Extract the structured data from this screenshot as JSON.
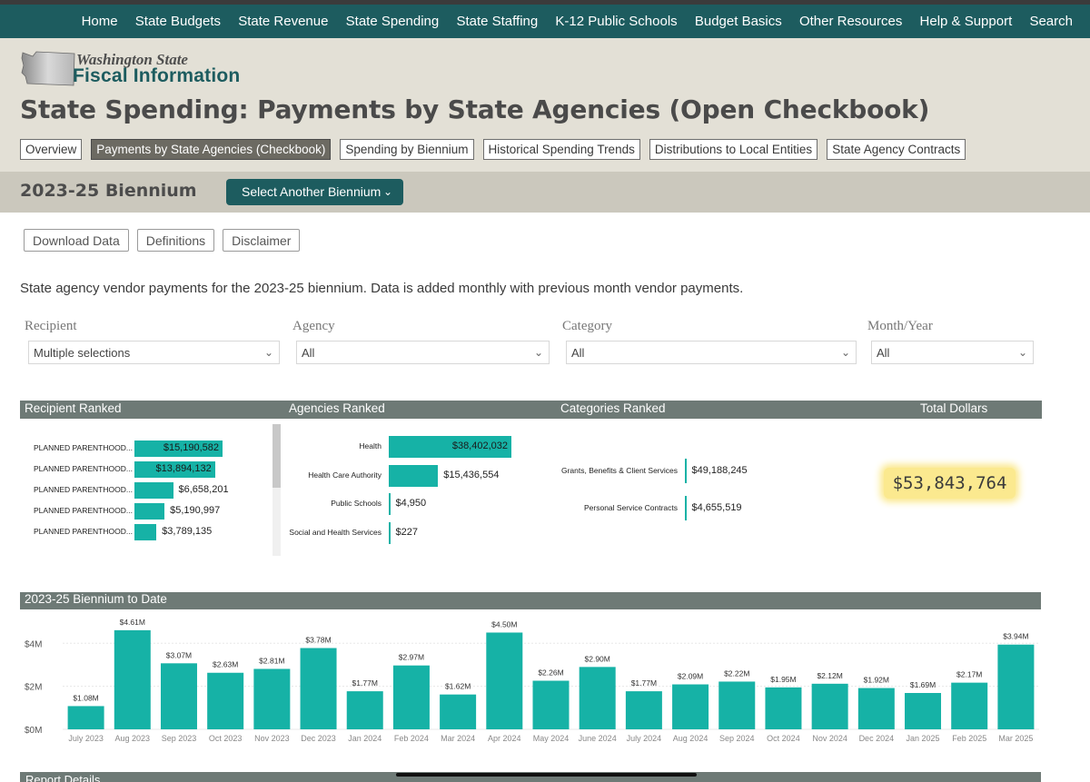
{
  "nav": [
    "Home",
    "State Budgets",
    "State Revenue",
    "State Spending",
    "State Staffing",
    "K-12 Public Schools",
    "Budget Basics",
    "Other Resources",
    "Help & Support",
    "Search"
  ],
  "logo": {
    "line1": "Washington State",
    "line2": "Fiscal Information"
  },
  "page_title": "State Spending: Payments by State Agencies (Open Checkbook)",
  "tabs": [
    "Overview",
    "Payments by State Agencies (Checkbook)",
    "Spending by Biennium",
    "Historical Spending Trends",
    "Distributions to Local Entities",
    "State Agency Contracts"
  ],
  "active_tab": 1,
  "biennium": {
    "title": "2023-25 Biennium",
    "select_label": "Select Another Biennium"
  },
  "actions": [
    "Download Data",
    "Definitions",
    "Disclaimer"
  ],
  "description": "State agency vendor payments for the 2023-25 biennium. Data is added monthly with previous month vendor payments.",
  "filters": {
    "recipient": {
      "label": "Recipient",
      "value": "Multiple selections"
    },
    "agency": {
      "label": "Agency",
      "value": "All"
    },
    "category": {
      "label": "Category",
      "value": "All"
    },
    "month_year": {
      "label": "Month/Year",
      "value": "All"
    }
  },
  "panels": {
    "recipient_title": "Recipient Ranked",
    "agencies_title": "Agencies Ranked",
    "categories_title": "Categories Ranked",
    "total_title": "Total Dollars",
    "total_value": "$53,843,764"
  },
  "recipients": [
    {
      "label": "PLANNED PARENTHOOD...",
      "value": "$15,190,582",
      "amount": 15190582
    },
    {
      "label": "PLANNED PARENTHOOD...",
      "value": "$13,894,132",
      "amount": 13894132
    },
    {
      "label": "PLANNED PARENTHOOD...",
      "value": "$6,658,201",
      "amount": 6658201
    },
    {
      "label": "PLANNED PARENTHOOD...",
      "value": "$5,190,997",
      "amount": 5190997
    },
    {
      "label": "PLANNED PARENTHOOD...",
      "value": "$3,789,135",
      "amount": 3789135
    }
  ],
  "agencies": [
    {
      "label": "Health",
      "value": "$38,402,032",
      "amount": 38402032
    },
    {
      "label": "Health Care Authority",
      "value": "$15,436,554",
      "amount": 15436554
    },
    {
      "label": "Public Schools",
      "value": "$4,950",
      "amount": 4950
    },
    {
      "label": "Social and Health Services",
      "value": "$227",
      "amount": 227
    }
  ],
  "categories": [
    {
      "label": "Grants, Benefits & Client Services",
      "value": "$49,188,245",
      "amount": 49188245
    },
    {
      "label": "Personal Service Contracts",
      "value": "$4,655,519",
      "amount": 4655519
    }
  ],
  "chart_title": "2023-25  Biennium to Date",
  "report_title": "Report Details",
  "chart_data": {
    "type": "bar",
    "title": "2023-25  Biennium to Date",
    "categories": [
      "July 2023",
      "Aug 2023",
      "Sep 2023",
      "Oct 2023",
      "Nov 2023",
      "Dec 2023",
      "Jan 2024",
      "Feb 2024",
      "Mar 2024",
      "Apr 2024",
      "May 2024",
      "June 2024",
      "July 2024",
      "Aug 2024",
      "Sep 2024",
      "Oct 2024",
      "Nov 2024",
      "Dec 2024",
      "Jan 2025",
      "Feb 2025",
      "Mar 2025"
    ],
    "values": [
      1.08,
      4.61,
      3.07,
      2.63,
      2.81,
      3.78,
      1.77,
      2.97,
      1.62,
      4.5,
      2.26,
      2.9,
      1.77,
      2.09,
      2.22,
      1.95,
      2.12,
      1.92,
      1.69,
      2.17,
      3.94
    ],
    "labels": [
      "$1.08M",
      "$4.61M",
      "$3.07M",
      "$2.63M",
      "$2.81M",
      "$3.78M",
      "$1.77M",
      "$2.97M",
      "$1.62M",
      "$4.50M",
      "$2.26M",
      "$2.90M",
      "$1.77M",
      "$2.09M",
      "$2.22M",
      "$1.95M",
      "$2.12M",
      "$1.92M",
      "$1.69M",
      "$2.17M",
      "$3.94M"
    ],
    "yticks": [
      0,
      2,
      4
    ],
    "ytick_labels": [
      "$0M",
      "$2M",
      "$4M"
    ],
    "ylim": [
      0,
      4.9
    ],
    "ylabel": "",
    "xlabel": "",
    "color": "#16b2a6"
  },
  "colors": {
    "nav": "#1d5c5f",
    "header": "#e3e0d6",
    "bar": "#16b2a6",
    "panel": "#6e7a76",
    "highlight": "#fbe98f"
  }
}
